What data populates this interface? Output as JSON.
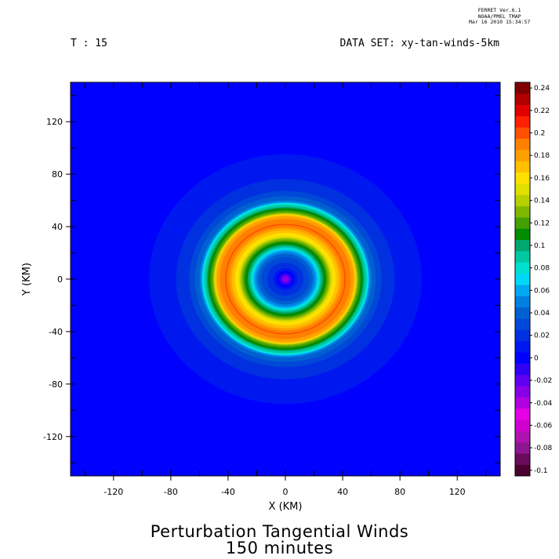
{
  "header": {
    "ferret_lines": [
      "FERRET  Ver.6.1",
      "NOAA/PMEL TMAP",
      "Mar 16 2010 15:34:57"
    ],
    "time_label": "T : 15",
    "dataset_label": "DATA SET: xy-tan-winds-5km"
  },
  "title": {
    "line1": "Perturbation Tangential Winds",
    "line2": "150 minutes"
  },
  "chart_data": {
    "type": "heatmap",
    "title": "Perturbation Tangential Winds",
    "subtitle": "150 minutes",
    "xlabel": "X (KM)",
    "ylabel": "Y (KM)",
    "xlim": [
      -150,
      150
    ],
    "ylim": [
      -150,
      150
    ],
    "x_ticks": [
      -120,
      -80,
      -40,
      0,
      40,
      80,
      120
    ],
    "y_ticks": [
      -120,
      -80,
      -40,
      0,
      40,
      80,
      120
    ],
    "field": "perturbation tangential wind",
    "field_structure": {
      "center": [
        0,
        0
      ],
      "inner_ring_peak_radius_km": 28,
      "inner_ring_peak_value": 0.06,
      "outer_ring_peak_radius_km": 43,
      "outer_ring_peak_value": 0.17,
      "outer_edge_radius_km": 62,
      "background_value": 0.0,
      "center_min_value": -0.03
    },
    "colorbar": {
      "levels": [
        -0.1,
        -0.09,
        -0.08,
        -0.07,
        -0.06,
        -0.05,
        -0.04,
        -0.03,
        -0.02,
        -0.01,
        0,
        0.01,
        0.02,
        0.03,
        0.04,
        0.05,
        0.06,
        0.07,
        0.08,
        0.09,
        0.1,
        0.11,
        0.12,
        0.13,
        0.14,
        0.15,
        0.16,
        0.17,
        0.18,
        0.19,
        0.2,
        0.21,
        0.22,
        0.23,
        0.24,
        0.25
      ],
      "tick_labels": [
        "-0.1",
        "-0.08",
        "-0.06",
        "-0.04",
        "-0.02",
        "0",
        "0.02",
        "0.04",
        "0.06",
        "0.08",
        "0.1",
        "0.12",
        "0.14",
        "0.16",
        "0.18",
        "0.2",
        "0.22",
        "0.24"
      ],
      "colors": [
        "#4a0030",
        "#6a0a5a",
        "#8c1690",
        "#b012b0",
        "#d000d0",
        "#e600e6",
        "#b000e0",
        "#8a00e6",
        "#6000f0",
        "#3000f5",
        "#0000ff",
        "#0018f0",
        "#0030e0",
        "#0048d8",
        "#0060d0",
        "#0080e0",
        "#00a8f0",
        "#00d8f8",
        "#00e0d0",
        "#00c8a0",
        "#00a870",
        "#008c00",
        "#44a000",
        "#80b800",
        "#b8d000",
        "#e0e000",
        "#ffe000",
        "#ffc000",
        "#ffa000",
        "#ff8000",
        "#ff5000",
        "#ff2000",
        "#e00000",
        "#b00000",
        "#800000"
      ]
    }
  }
}
